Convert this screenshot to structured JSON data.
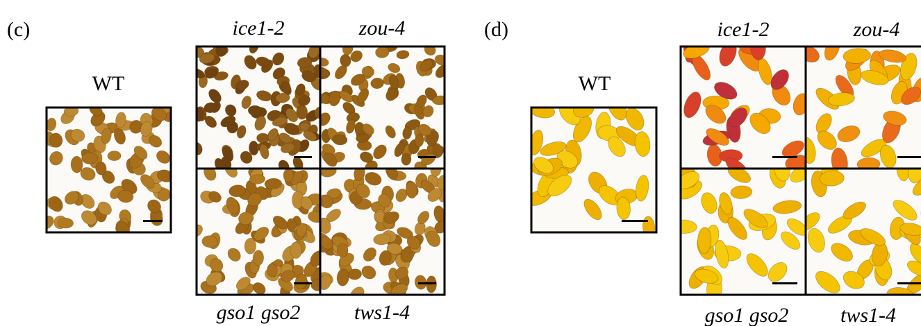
{
  "panels": [
    {
      "label": "(c)",
      "wt": "WT",
      "mutants": [
        "ice1-2",
        "zou-4",
        "gso1 gso2",
        "tws1-4"
      ]
    },
    {
      "label": "(d)",
      "wt": "WT",
      "mutants": [
        "ice1-2",
        "zou-4",
        "gso1 gso2",
        "tws1-4"
      ]
    }
  ]
}
